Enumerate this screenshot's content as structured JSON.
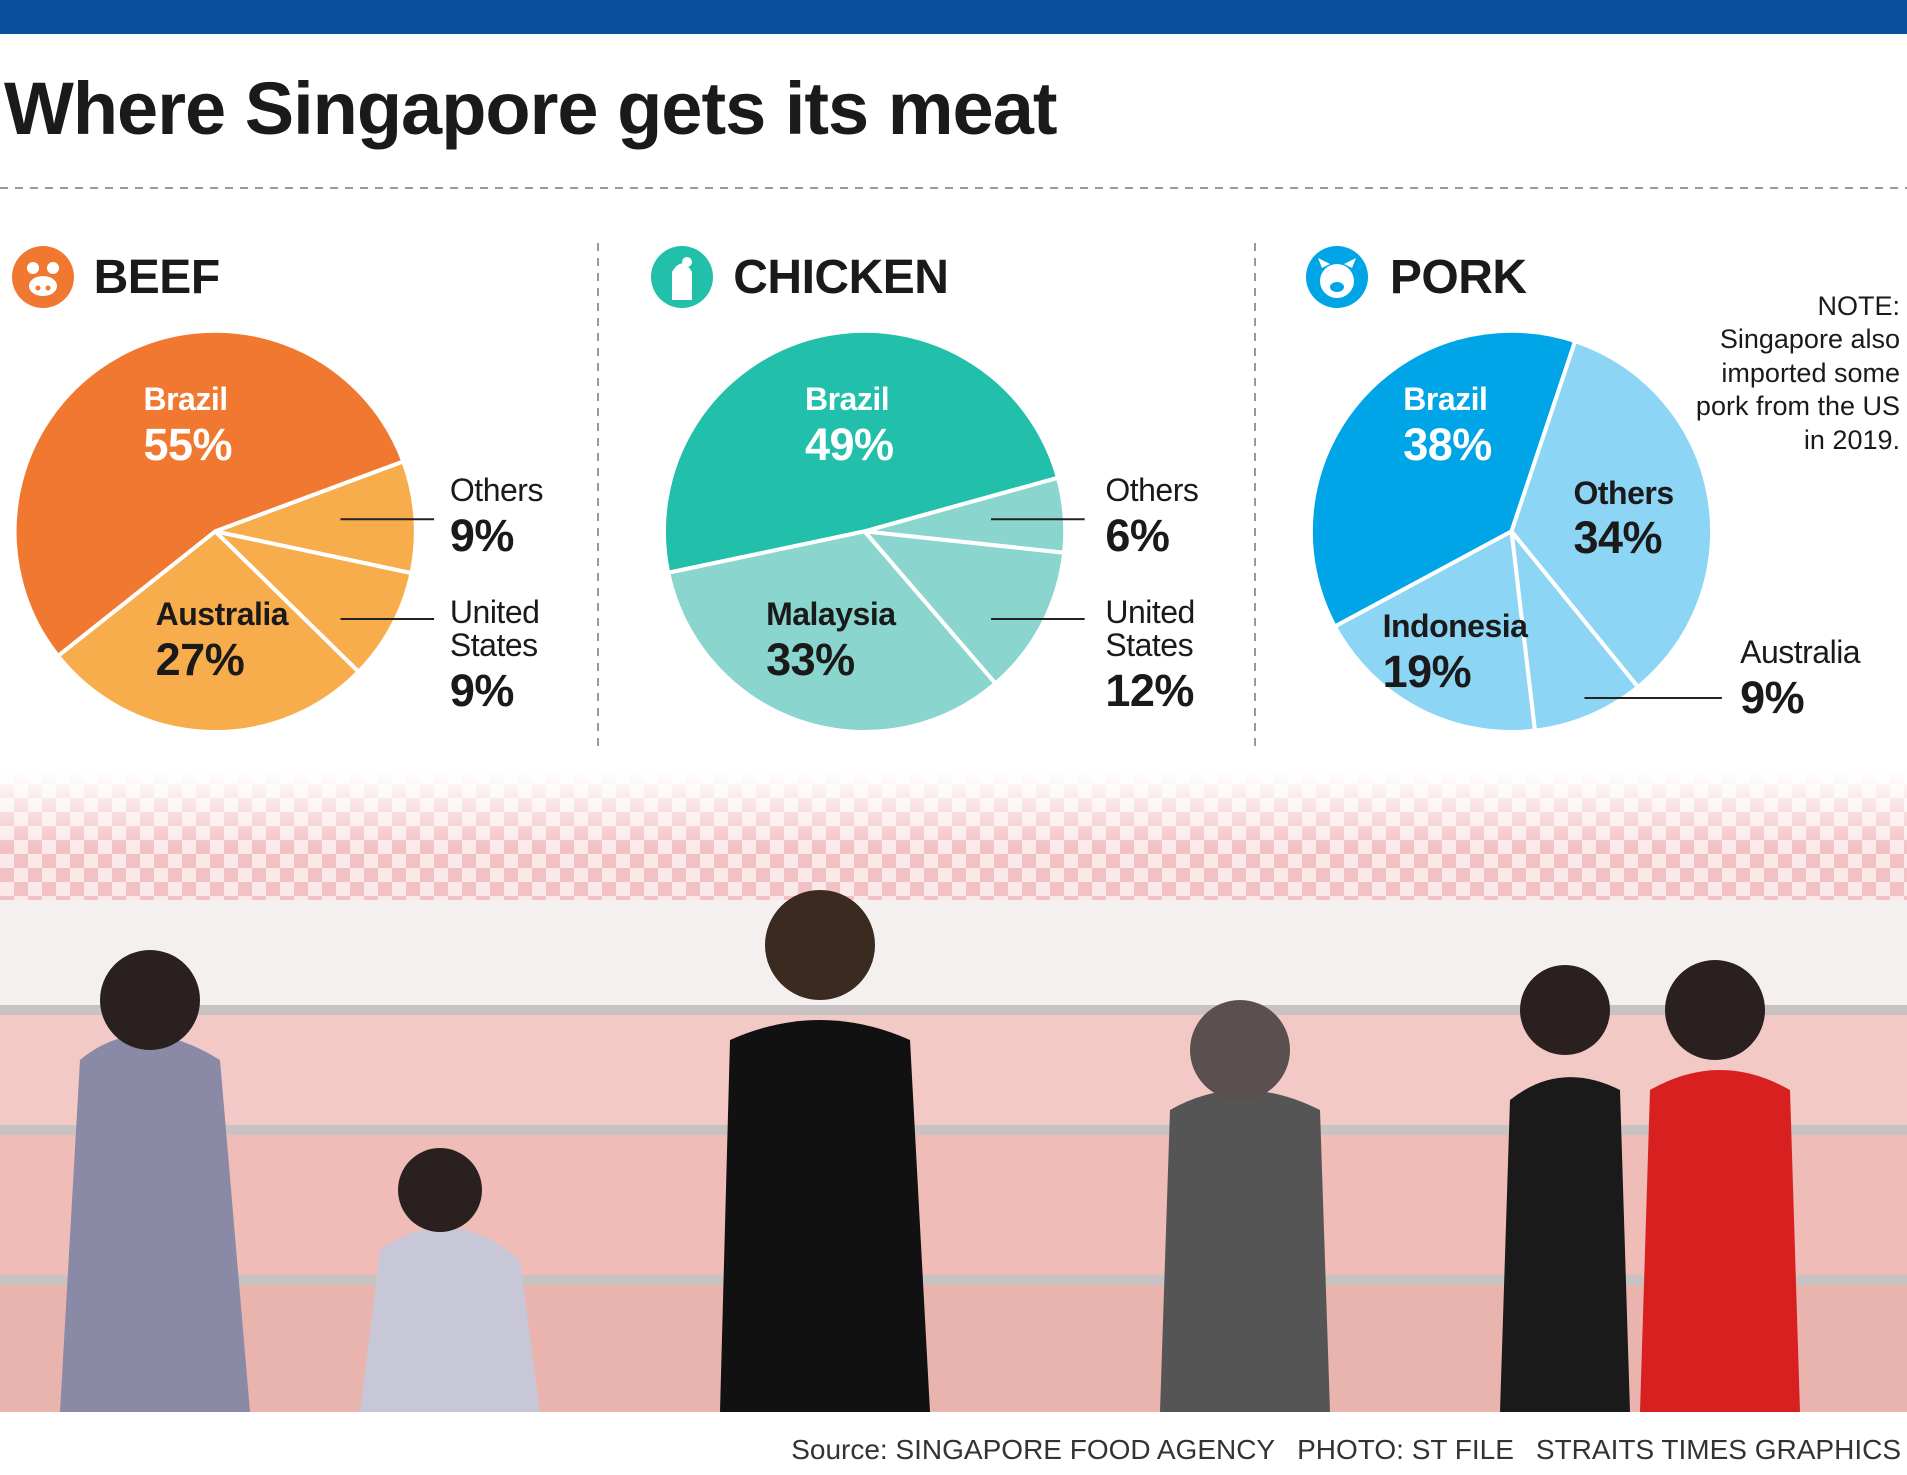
{
  "title": "Where Singapore gets its meat",
  "note": {
    "heading": "NOTE:",
    "text": "Singapore also imported some pork from the US in 2019."
  },
  "credits": [
    "Source: SINGAPORE FOOD AGENCY",
    "PHOTO: ST FILE",
    "STRAITS TIMES GRAPHICS"
  ],
  "chart_data": [
    {
      "type": "pie",
      "title": "BEEF",
      "categories": [
        "Brazil",
        "Others",
        "United States",
        "Australia"
      ],
      "values": [
        55,
        9,
        9,
        27
      ],
      "value_labels": [
        "55%",
        "9%",
        "9%",
        "27%"
      ],
      "colors": [
        "#f07830",
        "#f8ad4c",
        "#f8ad4c",
        "#f8ad4c"
      ]
    },
    {
      "type": "pie",
      "title": "CHICKEN",
      "categories": [
        "Brazil",
        "Others",
        "United States",
        "Malaysia"
      ],
      "values": [
        49,
        6,
        12,
        33
      ],
      "value_labels": [
        "49%",
        "6%",
        "12%",
        "33%"
      ],
      "colors": [
        "#22bfaa",
        "#8ad5cd",
        "#8ad5cd",
        "#8ad5cd"
      ]
    },
    {
      "type": "pie",
      "title": "PORK",
      "categories": [
        "Brazil",
        "Others",
        "Australia",
        "Indonesia"
      ],
      "values": [
        38,
        34,
        9,
        19
      ],
      "value_labels": [
        "38%",
        "34%",
        "9%",
        "19%"
      ],
      "colors": [
        "#00a5e8",
        "#8dd5f5",
        "#8dd5f5",
        "#8dd5f5"
      ]
    }
  ]
}
